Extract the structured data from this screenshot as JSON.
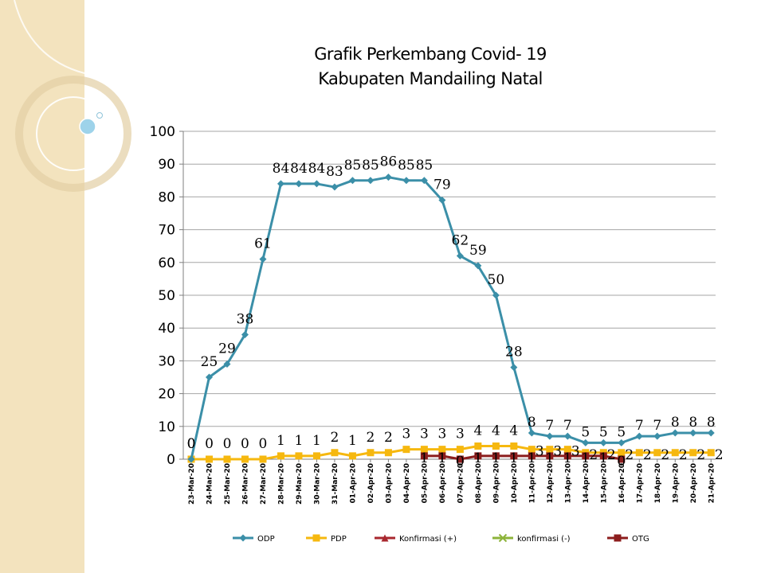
{
  "colors": {
    "odp": "#3B8FA8",
    "pdp": "#F6B80F",
    "konfirmasi_pos": "#A8272E",
    "konfirmasi_neg": "#8DB33A",
    "otg": "#8C1D1D",
    "grid": "#A6A6A6",
    "panel": "#F3E3BE"
  },
  "chart_data": {
    "type": "line",
    "title": "Grafik Perkembang Covid- 19",
    "subtitle": "Kabupaten Mandailing Natal",
    "xlabel": "",
    "ylabel": "",
    "ylim": [
      0,
      100
    ],
    "yticks": [
      "0",
      "10",
      "20",
      "30",
      "40",
      "50",
      "60",
      "70",
      "80",
      "90",
      "100"
    ],
    "grid": true,
    "legend_position": "bottom",
    "categories": [
      "23-Mar-20",
      "24-Mar-20",
      "25-Mar-20",
      "26-Mar-20",
      "27-Mar-20",
      "28-Mar-20",
      "29-Mar-20",
      "30-Mar-20",
      "31-Mar-20",
      "01-Apr-20",
      "02-Apr-20",
      "03-Apr-20",
      "04-Apr-20",
      "05-Apr-20",
      "06-Apr-20",
      "07-Apr-20",
      "08-Apr-20",
      "09-Apr-20",
      "10-Apr-20",
      "11-Apr-20",
      "12-Apr-20",
      "13-Apr-20",
      "14-Apr-20",
      "15-Apr-20",
      "16-Apr-20",
      "17-Apr-20",
      "18-Apr-20",
      "19-Apr-20",
      "20-Apr-20",
      "21-Apr-20"
    ],
    "series": [
      {
        "name": "ODP",
        "marker": "diamond",
        "color_key": "odp",
        "values": [
          0,
          25,
          29,
          38,
          61,
          84,
          84,
          84,
          83,
          85,
          85,
          86,
          85,
          85,
          79,
          62,
          59,
          50,
          28,
          8,
          7,
          7,
          5,
          5,
          5,
          7,
          7,
          8,
          8,
          8
        ]
      },
      {
        "name": "PDP",
        "marker": "square",
        "color_key": "pdp",
        "values": [
          0,
          0,
          0,
          0,
          0,
          1,
          1,
          1,
          2,
          1,
          2,
          2,
          3,
          3,
          3,
          3,
          4,
          4,
          4,
          3,
          3,
          3,
          2,
          2,
          2,
          2,
          2,
          2,
          2,
          2
        ]
      },
      {
        "name": "Konfirmasi (+)",
        "marker": "triangle",
        "color_key": "konfirmasi_pos",
        "values": [
          null,
          null,
          null,
          null,
          null,
          null,
          null,
          null,
          null,
          null,
          null,
          null,
          null,
          null,
          null,
          null,
          null,
          null,
          null,
          null,
          null,
          null,
          null,
          null,
          null,
          null,
          null,
          null,
          null,
          null
        ]
      },
      {
        "name": "konfirmasi (-)",
        "marker": "x",
        "color_key": "konfirmasi_neg",
        "values": [
          null,
          null,
          null,
          null,
          null,
          null,
          null,
          null,
          null,
          null,
          null,
          null,
          null,
          null,
          null,
          null,
          null,
          null,
          null,
          null,
          null,
          null,
          null,
          null,
          null,
          null,
          null,
          null,
          null,
          null
        ]
      },
      {
        "name": "OTG",
        "marker": "square",
        "color_key": "otg",
        "values": [
          null,
          null,
          null,
          null,
          null,
          null,
          null,
          null,
          null,
          null,
          null,
          null,
          null,
          1,
          1,
          0,
          1,
          1,
          1,
          1,
          1,
          1,
          1,
          1,
          0,
          null,
          null,
          null,
          null,
          null
        ]
      }
    ],
    "data_labels": {
      "ODP": [
        "0",
        "25",
        "29",
        "38",
        "61",
        "84",
        "84",
        "84",
        "83",
        "85",
        "85",
        "86",
        "85",
        "85",
        "79",
        "62",
        "59",
        "50",
        "28",
        "8",
        "7",
        "7",
        "5",
        "5",
        "5",
        "7",
        "7",
        "8",
        "8",
        "8"
      ],
      "PDP": [
        "0",
        "0",
        "0",
        "0",
        "0",
        "1",
        "1",
        "1",
        "2",
        "1",
        "2",
        "2",
        "3",
        "3",
        "3",
        "3",
        "4",
        "4",
        "4",
        "3",
        "3",
        "3",
        "2",
        "2",
        "2",
        "2",
        "2",
        "2",
        "2",
        "2"
      ],
      "OTG": [
        "",
        "",
        "",
        "",
        "",
        "",
        "",
        "",
        "",
        "",
        "",
        "",
        "",
        "1",
        "1",
        "0",
        "1",
        "1",
        "1",
        "1",
        "1",
        "1",
        "1",
        "1",
        "0",
        "",
        "",
        "",
        "",
        ""
      ]
    }
  }
}
